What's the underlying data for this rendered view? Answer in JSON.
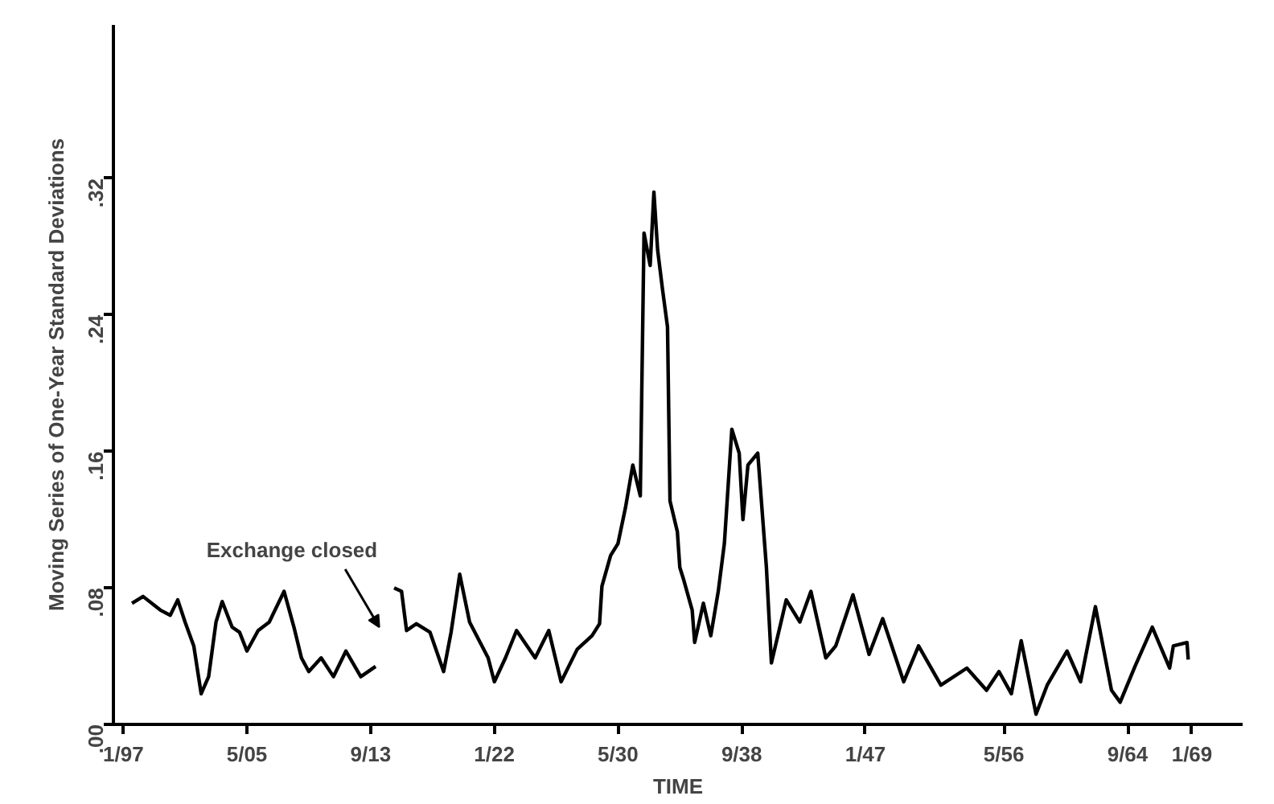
{
  "chart_data": {
    "type": "line",
    "xlabel": "TIME",
    "ylabel": "Moving Series of One-Year Standard Deviations",
    "x": [
      "1897-08",
      "1898-05",
      "1899-07",
      "1900-03",
      "1900-09",
      "1901-03",
      "1901-10",
      "1902-04",
      "1902-10",
      "1903-04",
      "1903-09",
      "1904-05",
      "1904-11",
      "1905-05",
      "1906-02",
      "1906-11",
      "1907-11",
      "1908-07",
      "1909-01",
      "1909-07",
      "1910-05",
      "1911-03",
      "1912-01",
      "1913-01",
      "1914-01",
      "1914-08",
      "1915-04",
      "1915-10",
      "1916-02",
      "1916-10",
      "1917-09",
      "1918-08",
      "1919-02",
      "1919-09",
      "1920-05",
      "1921-08",
      "1922-01",
      "1922-10",
      "1923-07",
      "1924-10",
      "1925-09",
      "1926-07",
      "1927-08",
      "1928-08",
      "1929-02",
      "1929-04",
      "1929-11",
      "1930-05",
      "1930-11",
      "1931-05",
      "1931-11",
      "1932-02",
      "1932-07",
      "1932-10",
      "1933-01",
      "1933-05",
      "1933-09",
      "1933-11",
      "1934-05",
      "1934-07",
      "1934-10",
      "1935-05",
      "1935-07",
      "1936-02",
      "1936-08",
      "1937-02",
      "1937-07",
      "1938-01",
      "1938-07",
      "1938-10",
      "1939-02",
      "1939-10",
      "1940-05",
      "1940-09",
      "1941-09",
      "1942-08",
      "1943-05",
      "1944-05",
      "1945-01",
      "1946-03",
      "1947-04",
      "1948-03",
      "1949-08",
      "1950-08",
      "1952-02",
      "1953-11",
      "1955-03",
      "1956-01",
      "1956-11",
      "1957-07",
      "1958-07",
      "1959-04",
      "1960-08",
      "1961-07",
      "1962-07",
      "1963-08",
      "1964-03",
      "1965-03",
      "1966-05",
      "1967-07",
      "1967-10",
      "1968-09",
      "1968-10"
    ],
    "values": [
      0.071,
      0.075,
      0.067,
      0.064,
      0.073,
      0.06,
      0.046,
      0.018,
      0.028,
      0.06,
      0.072,
      0.057,
      0.054,
      0.043,
      0.055,
      0.06,
      0.078,
      0.057,
      0.039,
      0.031,
      0.039,
      0.028,
      0.043,
      0.028,
      0.034,
      null,
      0.08,
      0.078,
      0.055,
      0.059,
      0.054,
      0.031,
      0.054,
      0.088,
      0.06,
      0.039,
      0.025,
      0.039,
      0.055,
      0.039,
      0.055,
      0.025,
      0.044,
      0.052,
      0.059,
      0.081,
      0.099,
      0.106,
      0.127,
      0.152,
      0.134,
      0.288,
      0.269,
      0.312,
      0.278,
      0.255,
      0.233,
      0.131,
      0.113,
      0.092,
      0.085,
      0.067,
      0.048,
      0.071,
      0.052,
      0.078,
      0.106,
      0.173,
      0.159,
      0.12,
      0.152,
      0.159,
      0.092,
      0.036,
      0.073,
      0.06,
      0.078,
      0.039,
      0.046,
      0.076,
      0.041,
      0.062,
      0.025,
      0.046,
      0.023,
      0.033,
      0.02,
      0.031,
      0.018,
      0.049,
      0.006,
      0.023,
      0.043,
      0.025,
      0.069,
      0.02,
      0.013,
      0.034,
      0.057,
      0.033,
      0.046,
      0.048,
      0.038
    ],
    "color": "#000000",
    "line_style": "solid",
    "marker": "none",
    "grid": false,
    "xlim": [
      "1896-05",
      "1972-06"
    ],
    "ylim": [
      0,
      0.41
    ],
    "xticks": [
      {
        "value": "1897-01",
        "label": "1/97"
      },
      {
        "value": "1905-05",
        "label": "5/05"
      },
      {
        "value": "1913-09",
        "label": "9/13"
      },
      {
        "value": "1922-01",
        "label": "1/22"
      },
      {
        "value": "1930-05",
        "label": "5/30"
      },
      {
        "value": "1938-09",
        "label": "9/38"
      },
      {
        "value": "1947-01",
        "label": "1/47"
      },
      {
        "value": "1956-05",
        "label": "5/56"
      },
      {
        "value": "1964-09",
        "label": "9/64"
      },
      {
        "value": "1969-01",
        "label": "1/69"
      }
    ],
    "yticks": [
      {
        "value": 0,
        "label": ".00"
      },
      {
        "value": 0.08,
        "label": ".08"
      },
      {
        "value": 0.16,
        "label": ".16"
      },
      {
        "value": 0.24,
        "label": ".24"
      },
      {
        "value": 0.32,
        "label": ".32"
      }
    ],
    "annotations": [
      "Exchange closed"
    ]
  }
}
